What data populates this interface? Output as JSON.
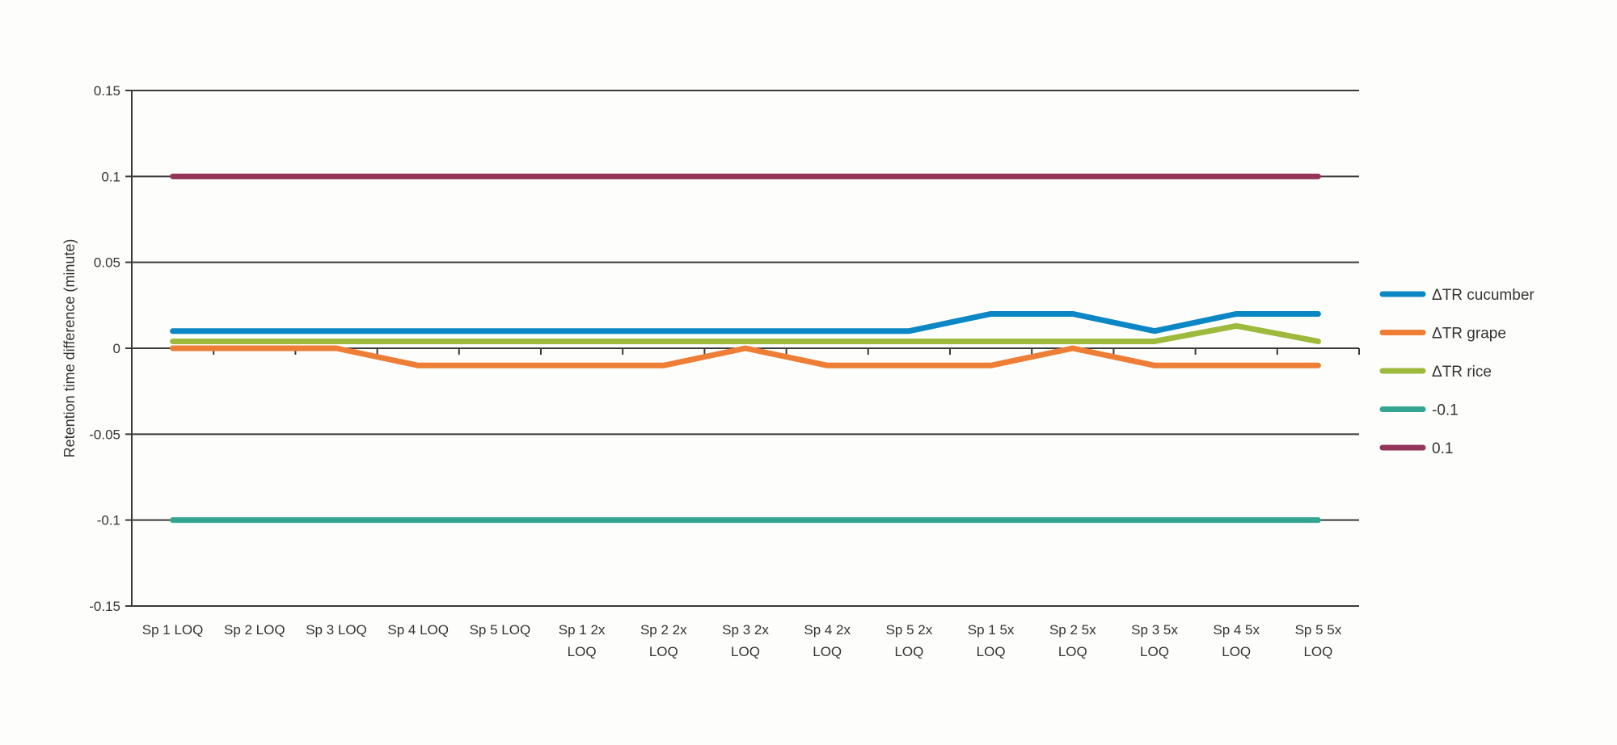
{
  "chart_data": {
    "type": "line",
    "title": "",
    "xlabel": "",
    "ylabel": "Retention time difference (minute)",
    "ylim": [
      -0.15,
      0.15
    ],
    "yticks": [
      0.15,
      0.1,
      0.05,
      0,
      -0.05,
      -0.1,
      -0.15
    ],
    "ytick_labels": [
      "0.15",
      "0.1",
      "0.05",
      "0",
      "-0.05",
      "-0.1",
      "-0.15"
    ],
    "grid": "horizontal",
    "legend_position": "right",
    "categories": [
      [
        "Sp 1 LOQ"
      ],
      [
        "Sp 2 LOQ"
      ],
      [
        "Sp 3 LOQ"
      ],
      [
        "Sp 4 LOQ"
      ],
      [
        "Sp 5 LOQ"
      ],
      [
        "Sp 1 2x",
        "LOQ"
      ],
      [
        "Sp 2 2x",
        "LOQ"
      ],
      [
        "Sp 3 2x",
        "LOQ"
      ],
      [
        "Sp 4 2x",
        "LOQ"
      ],
      [
        "Sp 5 2x",
        "LOQ"
      ],
      [
        "Sp 1 5x",
        "LOQ"
      ],
      [
        "Sp 2 5x",
        "LOQ"
      ],
      [
        "Sp 3 5x",
        "LOQ"
      ],
      [
        "Sp 4 5x",
        "LOQ"
      ],
      [
        "Sp 5 5x",
        "LOQ"
      ]
    ],
    "series": [
      {
        "name": "ΔTR cucumber",
        "color": "#0b87c5",
        "values": [
          0.01,
          0.01,
          0.01,
          0.01,
          0.01,
          0.01,
          0.01,
          0.01,
          0.01,
          0.01,
          0.02,
          0.02,
          0.01,
          0.02,
          0.02
        ]
      },
      {
        "name": "ΔTR grape",
        "color": "#ee7d35",
        "values": [
          0,
          0,
          0,
          -0.01,
          -0.01,
          -0.01,
          -0.01,
          0,
          -0.01,
          -0.01,
          -0.01,
          0,
          -0.01,
          -0.01,
          -0.01
        ]
      },
      {
        "name": "ΔTR rice",
        "color": "#9dba3c",
        "values": [
          0.004,
          0.004,
          0.004,
          0.004,
          0.004,
          0.004,
          0.004,
          0.004,
          0.004,
          0.004,
          0.004,
          0.004,
          0.004,
          0.013,
          0.004
        ]
      },
      {
        "name": "-0.1",
        "color": "#35a593",
        "values": [
          -0.1,
          -0.1,
          -0.1,
          -0.1,
          -0.1,
          -0.1,
          -0.1,
          -0.1,
          -0.1,
          -0.1,
          -0.1,
          -0.1,
          -0.1,
          -0.1,
          -0.1
        ]
      },
      {
        "name": "0.1",
        "color": "#93345a",
        "values": [
          0.1,
          0.1,
          0.1,
          0.1,
          0.1,
          0.1,
          0.1,
          0.1,
          0.1,
          0.1,
          0.1,
          0.1,
          0.1,
          0.1,
          0.1
        ]
      }
    ]
  }
}
